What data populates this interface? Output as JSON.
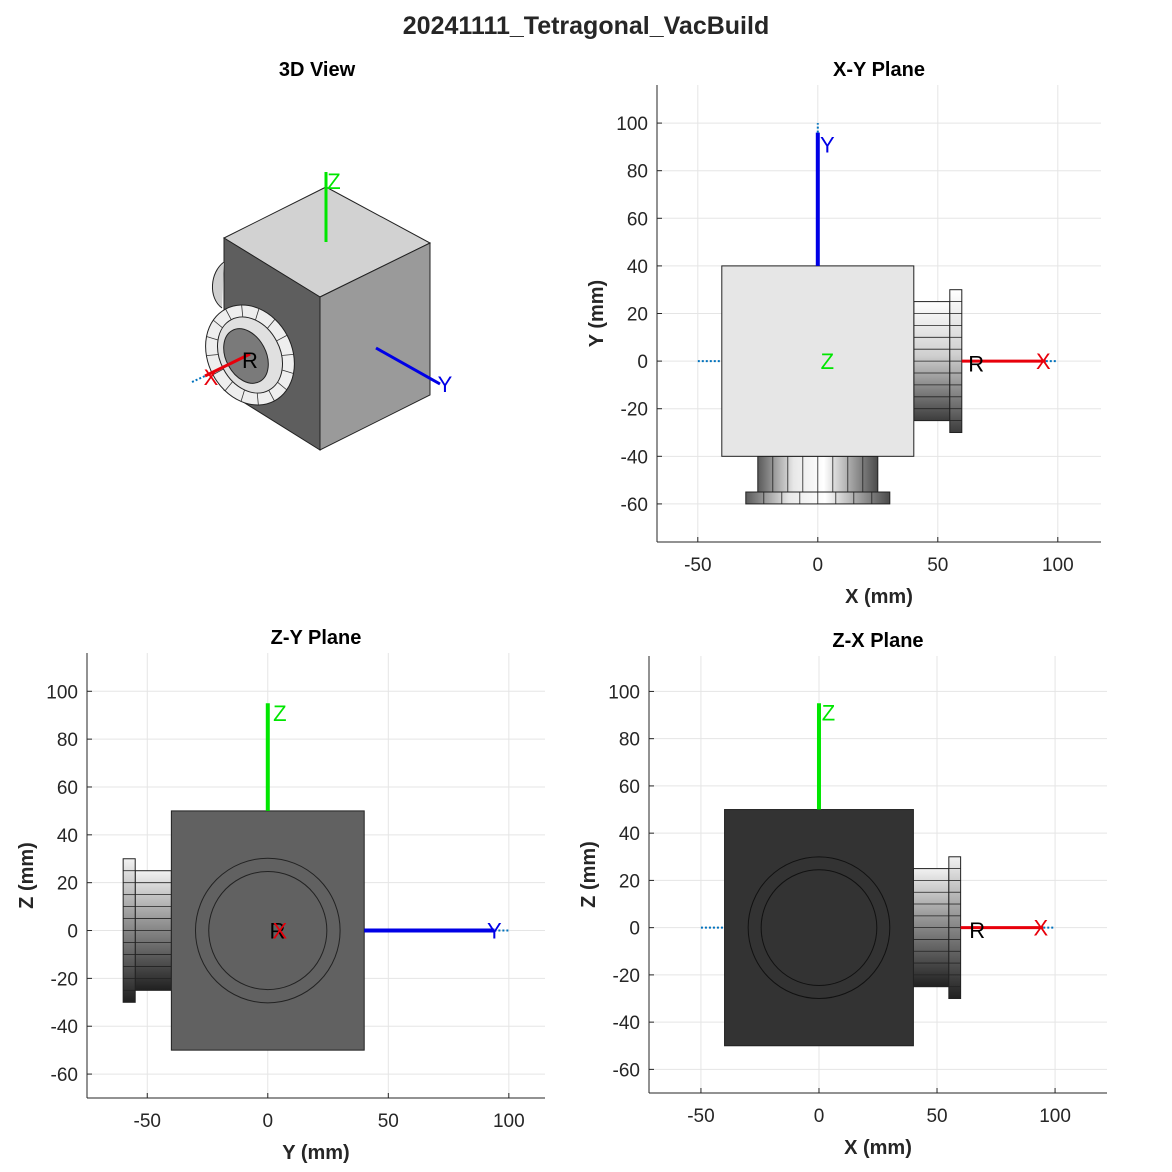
{
  "figure": {
    "title": "20241111_Tetragonal_VacBuild"
  },
  "colors": {
    "x_axis": "#e8000b",
    "y_axis": "#0000e6",
    "z_axis": "#00e600",
    "ref_dotted": "#0072bd",
    "grid": "#e5e5e5",
    "axis_line": "#262626",
    "label": "#262626"
  },
  "panels": {
    "view3d": {
      "title": "3D View",
      "triad": {
        "x": "X",
        "y": "Y",
        "z": "Z",
        "r": "R"
      }
    },
    "xy": {
      "title": "X-Y Plane",
      "xlabel": "X (mm)",
      "ylabel": "Y (mm)",
      "xticks": [
        -50,
        0,
        50,
        100
      ],
      "yticks": [
        -60,
        -40,
        -20,
        0,
        20,
        40,
        60,
        80,
        100
      ],
      "xlim": [
        -67,
        118
      ],
      "ylim": [
        -76,
        116
      ],
      "box_fill": "#e6e6e6",
      "triad": {
        "x": "X",
        "y": "Y",
        "center": "Z",
        "r": "R"
      }
    },
    "zy": {
      "title": "Z-Y Plane",
      "xlabel": "Y (mm)",
      "ylabel": "Z (mm)",
      "xticks": [
        -50,
        0,
        50,
        100
      ],
      "yticks": [
        -60,
        -40,
        -20,
        0,
        20,
        40,
        60,
        80,
        100
      ],
      "xlim": [
        -75,
        115
      ],
      "ylim": [
        -70,
        116
      ],
      "box_fill": "#616161",
      "triad": {
        "x": "Y",
        "y": "Z",
        "r": "R",
        "center": "X"
      }
    },
    "zx": {
      "title": "Z-X Plane",
      "xlabel": "X (mm)",
      "ylabel": "Z (mm)",
      "xticks": [
        -50,
        0,
        50,
        100
      ],
      "yticks": [
        -60,
        -40,
        -20,
        0,
        20,
        40,
        60,
        80,
        100
      ],
      "xlim": [
        -72,
        122
      ],
      "ylim": [
        -70,
        115
      ],
      "box_fill": "#333333",
      "triad": {
        "x": "X",
        "y": "Z",
        "r": "R"
      }
    }
  }
}
